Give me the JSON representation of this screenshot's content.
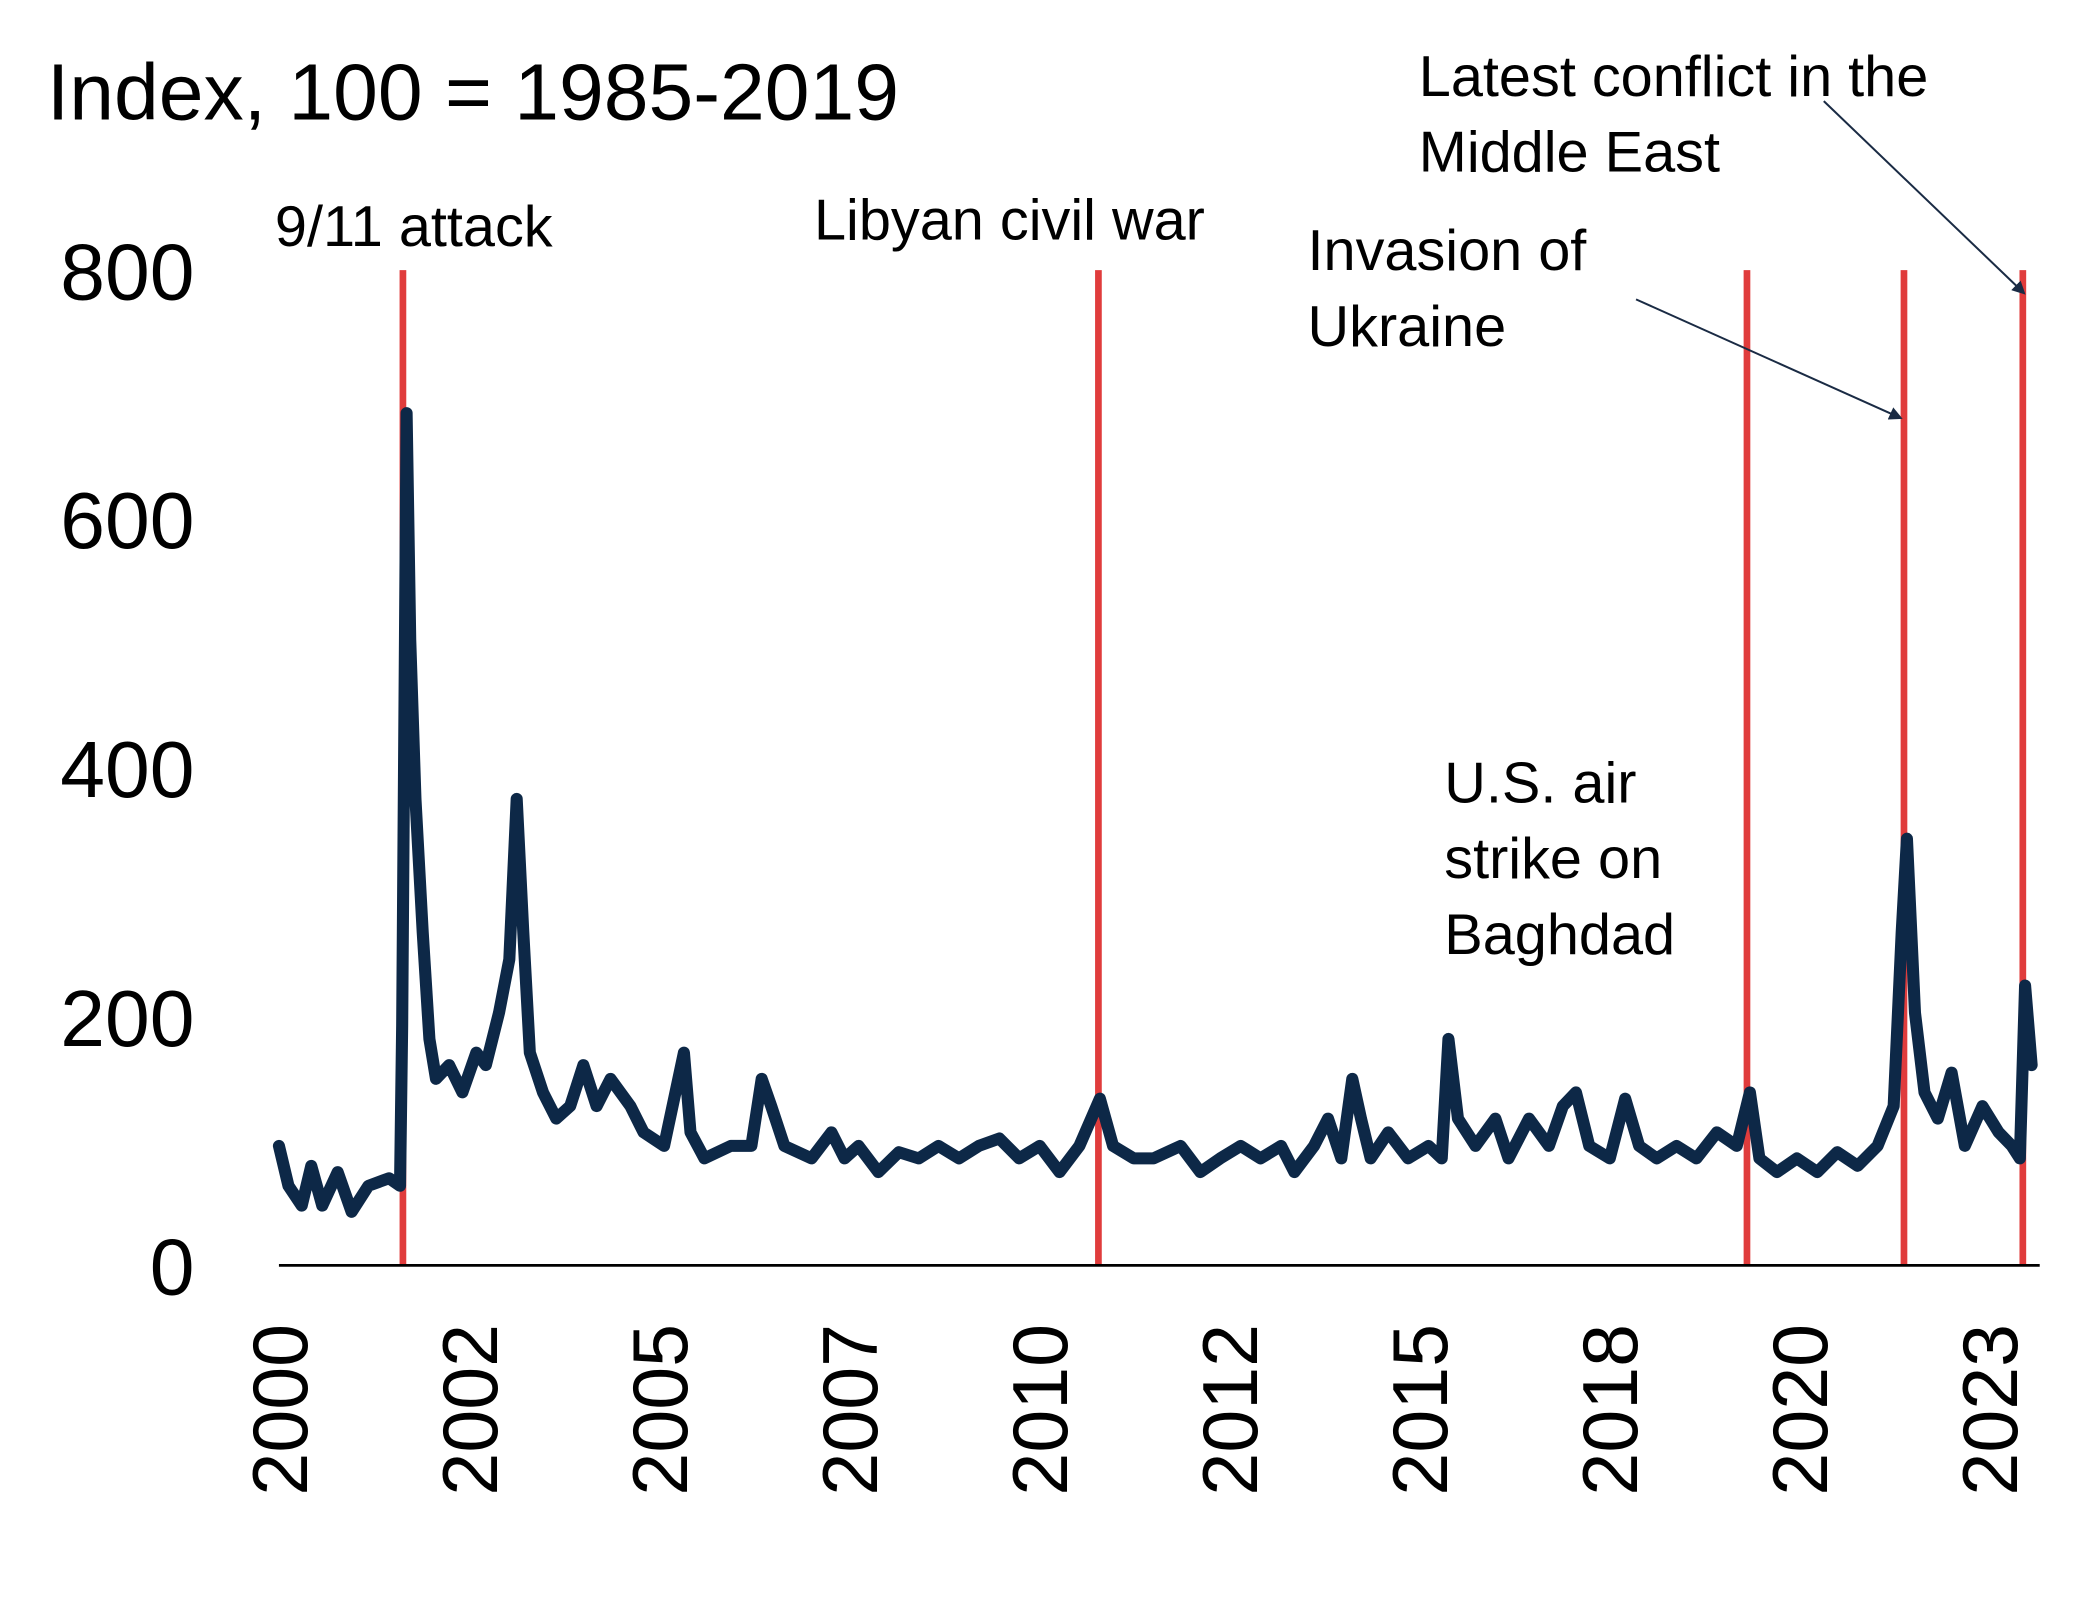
{
  "chart_data": {
    "type": "line",
    "title": "Index, 100 = 1985-2019",
    "xlabel": "",
    "ylabel": "",
    "xlim": [
      2000,
      2024
    ],
    "ylim": [
      0,
      800
    ],
    "yticks": [
      0,
      200,
      400,
      600,
      800
    ],
    "ytick_labels": [
      "0",
      "200",
      "400",
      "600",
      "800"
    ],
    "xtick_labels": [
      "2000",
      "2002",
      "2005",
      "2007",
      "2010",
      "2012",
      "2015",
      "2018",
      "2020",
      "2023"
    ],
    "grid": false,
    "colors": {
      "series": "#0d2847",
      "event_line": "#e03c3c",
      "arrow": "#1a2b44"
    },
    "series": [
      {
        "name": "Index",
        "x": [
          2000.0,
          2000.13,
          2000.31,
          2000.44,
          2000.59,
          2000.8,
          2000.99,
          2001.22,
          2001.5,
          2001.65,
          2001.68,
          2001.74,
          2001.79,
          2001.86,
          2001.96,
          2002.05,
          2002.14,
          2002.32,
          2002.5,
          2002.69,
          2002.82,
          2003.0,
          2003.14,
          2003.24,
          2003.33,
          2003.42,
          2003.6,
          2003.78,
          2003.97,
          2004.15,
          2004.33,
          2004.52,
          2004.79,
          2004.97,
          2005.25,
          2005.52,
          2005.61,
          2005.8,
          2006.16,
          2006.44,
          2006.58,
          2006.71,
          2006.89,
          2007.26,
          2007.53,
          2007.71,
          2007.9,
          2008.17,
          2008.45,
          2008.72,
          2008.99,
          2009.27,
          2009.54,
          2009.82,
          2010.09,
          2010.37,
          2010.64,
          2010.91,
          2011.19,
          2011.37,
          2011.65,
          2011.92,
          2012.29,
          2012.56,
          2012.83,
          2013.11,
          2013.38,
          2013.66,
          2013.84,
          2014.11,
          2014.3,
          2014.48,
          2014.63,
          2014.75,
          2014.88,
          2015.12,
          2015.39,
          2015.67,
          2015.85,
          2015.94,
          2016.07,
          2016.31,
          2016.58,
          2016.76,
          2017.04,
          2017.31,
          2017.5,
          2017.68,
          2017.86,
          2018.14,
          2018.35,
          2018.54,
          2018.78,
          2019.05,
          2019.32,
          2019.6,
          2019.87,
          2020.05,
          2020.18,
          2020.42,
          2020.69,
          2020.97,
          2021.24,
          2021.52,
          2021.79,
          2022.01,
          2022.12,
          2022.19,
          2022.3,
          2022.43,
          2022.61,
          2022.8,
          2022.98,
          2023.22,
          2023.44,
          2023.62,
          2023.73,
          2023.8,
          2023.89
        ],
        "values": [
          96,
          64,
          48,
          80,
          48,
          75,
          43,
          64,
          70,
          64,
          193,
          685,
          503,
          375,
          268,
          182,
          150,
          161,
          139,
          171,
          161,
          203,
          246,
          375,
          268,
          171,
          139,
          118,
          128,
          161,
          128,
          150,
          128,
          107,
          96,
          171,
          107,
          86,
          96,
          96,
          150,
          128,
          96,
          86,
          107,
          86,
          96,
          75,
          91,
          86,
          96,
          86,
          96,
          102,
          86,
          96,
          75,
          96,
          134,
          96,
          86,
          86,
          96,
          75,
          86,
          96,
          86,
          96,
          75,
          96,
          118,
          86,
          150,
          118,
          86,
          107,
          86,
          96,
          86,
          182,
          118,
          96,
          118,
          86,
          118,
          96,
          128,
          139,
          96,
          86,
          134,
          96,
          86,
          96,
          86,
          107,
          96,
          139,
          86,
          75,
          86,
          75,
          91,
          80,
          96,
          128,
          268,
          343,
          203,
          139,
          118,
          155,
          96,
          128,
          107,
          96,
          86,
          225,
          161
        ]
      }
    ],
    "events": [
      {
        "x": 2001.69,
        "label": [
          "9/11 attack"
        ]
      },
      {
        "x": 2011.17,
        "label": [
          "Libyan civil war"
        ]
      },
      {
        "x": 2020.01,
        "label": [
          "U.S. air",
          "strike on",
          "Baghdad"
        ]
      },
      {
        "x": 2022.15,
        "label": [
          "Invasion of",
          "Ukraine"
        ]
      },
      {
        "x": 2023.77,
        "label": [
          "Latest conflict in the",
          "Middle East"
        ]
      }
    ]
  }
}
